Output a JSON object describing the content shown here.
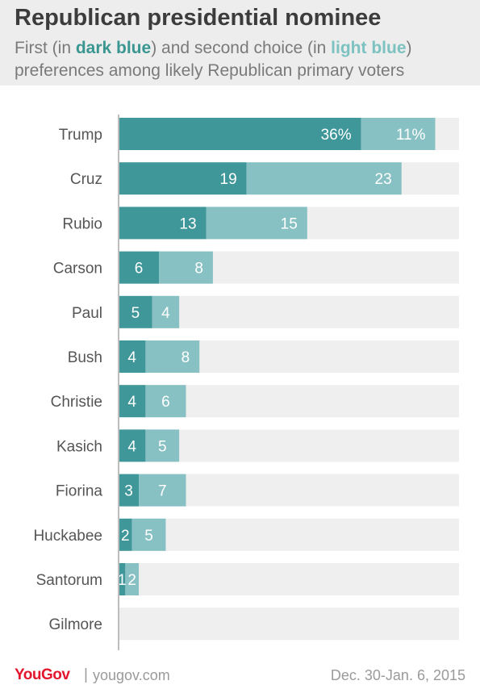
{
  "header": {
    "title": "Republican presidential nominee",
    "subtitle_pre": "First (in ",
    "subtitle_dark": "dark blue",
    "subtitle_mid": ") and second choice (in ",
    "subtitle_light": "light blue",
    "subtitle_post": ")",
    "subtitle_line2": "preferences among likely Republican primary voters"
  },
  "colors": {
    "first_choice": "#40979a",
    "second_choice": "#88c1c3",
    "track": "#efefef",
    "header_bg": "#ededed",
    "brand": "#e3162e"
  },
  "chart_data": {
    "type": "bar",
    "orientation": "horizontal",
    "stacked": true,
    "categories": [
      "Trump",
      "Cruz",
      "Rubio",
      "Carson",
      "Paul",
      "Bush",
      "Christie",
      "Kasich",
      "Fiorina",
      "Huckabee",
      "Santorum",
      "Gilmore"
    ],
    "series": [
      {
        "name": "First choice",
        "values": [
          36,
          19,
          13,
          6,
          5,
          4,
          4,
          4,
          3,
          2,
          1,
          0
        ]
      },
      {
        "name": "Second choice",
        "values": [
          11,
          23,
          15,
          8,
          4,
          8,
          6,
          5,
          7,
          5,
          2,
          0
        ]
      }
    ],
    "labels": {
      "first": [
        "36%",
        "19",
        "13",
        "6",
        "5",
        "4",
        "4",
        "4",
        "3",
        "2",
        "1",
        ""
      ],
      "second": [
        "11%",
        "23",
        "15",
        "8",
        "4",
        "8",
        "6",
        "5",
        "7",
        "5",
        "2",
        ""
      ]
    },
    "xlim": [
      0,
      50
    ],
    "legend": "none"
  },
  "footer": {
    "logo": "YouGov",
    "separator": "|",
    "site": "yougov.com",
    "date": "Dec. 30-Jan. 6, 2015"
  }
}
